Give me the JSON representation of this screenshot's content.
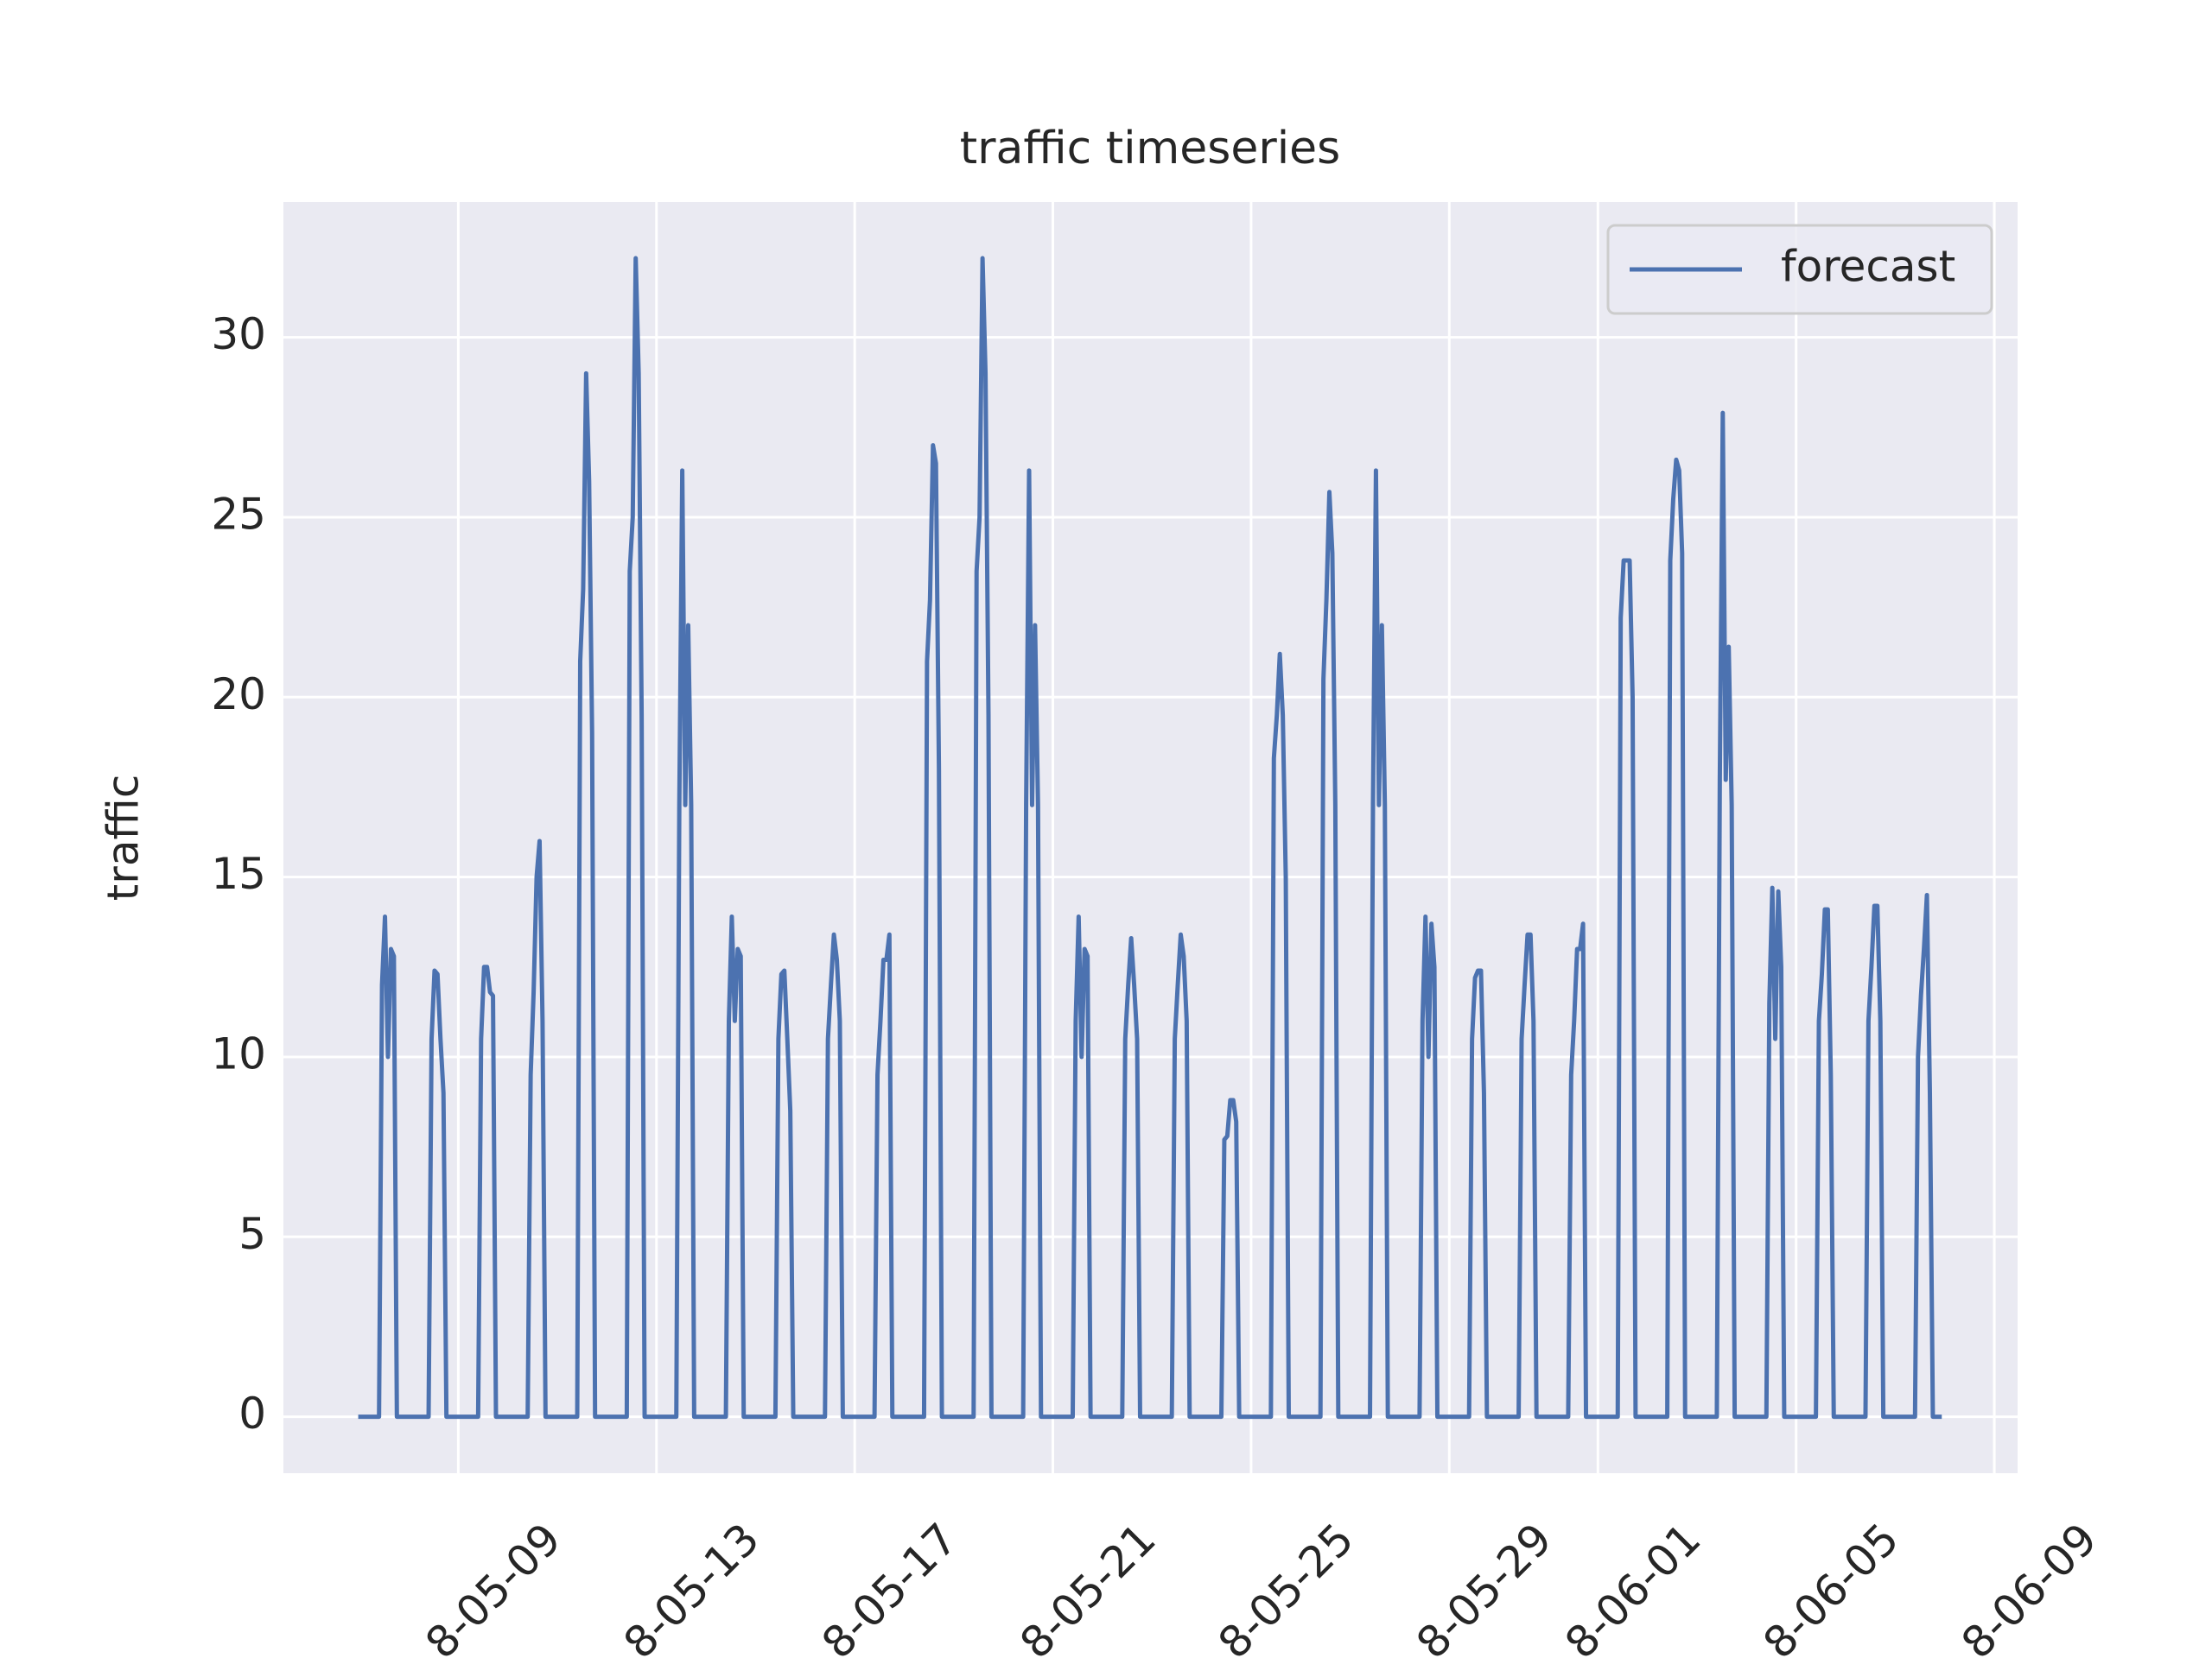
{
  "chart_data": {
    "type": "line",
    "title": "traffic timeseries",
    "y_label": "traffic",
    "x": [
      6.98,
      7.4,
      7.46,
      7.52,
      7.58,
      7.64,
      7.7,
      7.76,
      8.4,
      8.46,
      8.52,
      8.58,
      8.64,
      8.7,
      8.76,
      9.4,
      9.46,
      9.52,
      9.58,
      9.64,
      9.7,
      9.76,
      10.4,
      10.46,
      10.52,
      10.58,
      10.64,
      10.7,
      10.76,
      11.4,
      11.46,
      11.52,
      11.58,
      11.64,
      11.7,
      11.76,
      12.4,
      12.46,
      12.52,
      12.58,
      12.64,
      12.7,
      12.76,
      13.4,
      13.46,
      13.52,
      13.58,
      13.64,
      13.7,
      13.76,
      14.4,
      14.46,
      14.52,
      14.58,
      14.64,
      14.7,
      14.76,
      15.4,
      15.46,
      15.52,
      15.58,
      15.64,
      15.7,
      15.76,
      16.4,
      16.46,
      16.52,
      16.58,
      16.64,
      16.7,
      16.76,
      17.4,
      17.46,
      17.52,
      17.58,
      17.64,
      17.7,
      17.76,
      18.4,
      18.46,
      18.52,
      18.58,
      18.64,
      18.7,
      18.76,
      19.4,
      19.46,
      19.52,
      19.58,
      19.64,
      19.7,
      19.76,
      20.4,
      20.46,
      20.52,
      20.58,
      20.64,
      20.7,
      20.76,
      21.4,
      21.46,
      21.52,
      21.58,
      21.64,
      21.7,
      21.76,
      22.4,
      22.46,
      22.52,
      22.58,
      22.64,
      22.7,
      22.76,
      23.4,
      23.46,
      23.52,
      23.58,
      23.64,
      23.7,
      23.76,
      24.4,
      24.46,
      24.52,
      24.58,
      24.64,
      24.7,
      24.76,
      25.4,
      25.46,
      25.52,
      25.58,
      25.64,
      25.7,
      25.76,
      26.4,
      26.46,
      26.52,
      26.58,
      26.64,
      26.7,
      26.76,
      27.4,
      27.46,
      27.52,
      27.58,
      27.64,
      27.7,
      27.76,
      28.4,
      28.46,
      28.52,
      28.58,
      28.64,
      28.7,
      28.76,
      29.4,
      29.46,
      29.52,
      29.58,
      29.64,
      29.7,
      29.76,
      30.4,
      30.46,
      30.52,
      30.58,
      30.64,
      30.7,
      30.76,
      31.4,
      31.46,
      31.52,
      31.58,
      31.64,
      31.7,
      31.76,
      32.4,
      32.46,
      32.52,
      32.58,
      32.64,
      32.7,
      32.76,
      33.4,
      33.46,
      33.52,
      33.58,
      33.64,
      33.7,
      33.76,
      34.4,
      34.46,
      34.52,
      34.58,
      34.64,
      34.7,
      34.76,
      35.4,
      35.46,
      35.52,
      35.58,
      35.64,
      35.7,
      35.76,
      36.4,
      36.46,
      36.52,
      36.58,
      36.64,
      36.7,
      36.76,
      37.4,
      37.46,
      37.52,
      37.58,
      37.64,
      37.7,
      37.76,
      38.4,
      38.46,
      38.52,
      38.58,
      38.64,
      38.7,
      38.76,
      38.94
    ],
    "series": [
      {
        "name": "forecast",
        "color": "#4c72b0",
        "values": [
          0,
          0,
          12,
          13.9,
          10,
          13,
          12.8,
          0,
          0,
          10.5,
          12.4,
          12.3,
          10.5,
          9,
          0,
          0,
          10.5,
          12.5,
          12.5,
          11.8,
          11.7,
          0,
          0,
          9.5,
          11.8,
          15,
          16,
          11,
          0,
          0,
          21,
          23,
          29,
          26,
          19,
          0,
          0,
          23.5,
          25,
          32.2,
          29,
          19.5,
          0,
          0,
          17,
          26.3,
          17,
          22,
          17,
          0,
          0,
          11,
          13.9,
          11,
          13,
          12.8,
          0,
          0,
          10.5,
          12.3,
          12.4,
          10.5,
          8.5,
          0,
          0,
          10.5,
          12,
          13.4,
          12.7,
          11,
          0,
          0,
          9.5,
          11,
          12.7,
          12.7,
          13.4,
          0,
          0,
          21,
          22.7,
          27,
          26.5,
          18,
          0,
          0,
          23.5,
          25,
          32.2,
          29,
          19.5,
          0,
          0,
          17,
          26.3,
          17,
          22,
          17,
          0,
          0,
          11,
          13.9,
          10,
          13,
          12.8,
          0,
          0,
          10.5,
          12,
          13.3,
          12,
          10.5,
          0,
          0,
          10.5,
          12,
          13.4,
          12.8,
          11,
          0,
          0,
          7.7,
          7.8,
          8.8,
          8.8,
          8.2,
          0,
          0,
          18.3,
          19.5,
          21.2,
          19.5,
          15,
          0,
          0,
          20.5,
          22.7,
          25.7,
          24,
          17,
          0,
          0,
          17,
          26.3,
          17,
          22,
          17,
          0,
          0,
          11,
          13.9,
          10,
          13.7,
          12.5,
          0,
          0,
          10.5,
          12.2,
          12.4,
          12.4,
          9,
          0,
          0,
          10.5,
          12,
          13.4,
          13.4,
          11,
          0,
          0,
          9.5,
          11,
          13,
          13,
          13.7,
          0,
          0,
          22.2,
          23.8,
          23.8,
          23.8,
          20,
          0,
          0,
          23.8,
          25.5,
          26.6,
          26.3,
          24,
          0,
          0,
          17.7,
          27.9,
          17.7,
          21.4,
          17,
          0,
          0,
          11.5,
          14.7,
          10.5,
          14.6,
          12.5,
          0,
          0,
          11,
          12.3,
          14.1,
          14.1,
          9.5,
          0,
          0,
          11,
          12.5,
          14.2,
          14.2,
          11,
          0,
          0,
          10,
          11.7,
          13,
          14.5,
          9,
          0,
          0
        ]
      }
    ],
    "xlim": [
      5.47,
      40.47
    ],
    "xticks": [
      {
        "value": 9,
        "label": "8-05-09"
      },
      {
        "value": 13,
        "label": "8-05-13"
      },
      {
        "value": 17,
        "label": "8-05-17"
      },
      {
        "value": 21,
        "label": "8-05-21"
      },
      {
        "value": 25,
        "label": "8-05-25"
      },
      {
        "value": 29,
        "label": "8-05-29"
      },
      {
        "value": 32,
        "label": "8-06-01"
      },
      {
        "value": 36,
        "label": "8-06-05"
      },
      {
        "value": 40,
        "label": "8-06-09"
      }
    ],
    "ylim": [
      -1.57,
      33.76
    ],
    "yticks": [
      0,
      5,
      10,
      15,
      20,
      25,
      30
    ],
    "grid": true,
    "legend": "upper right"
  }
}
